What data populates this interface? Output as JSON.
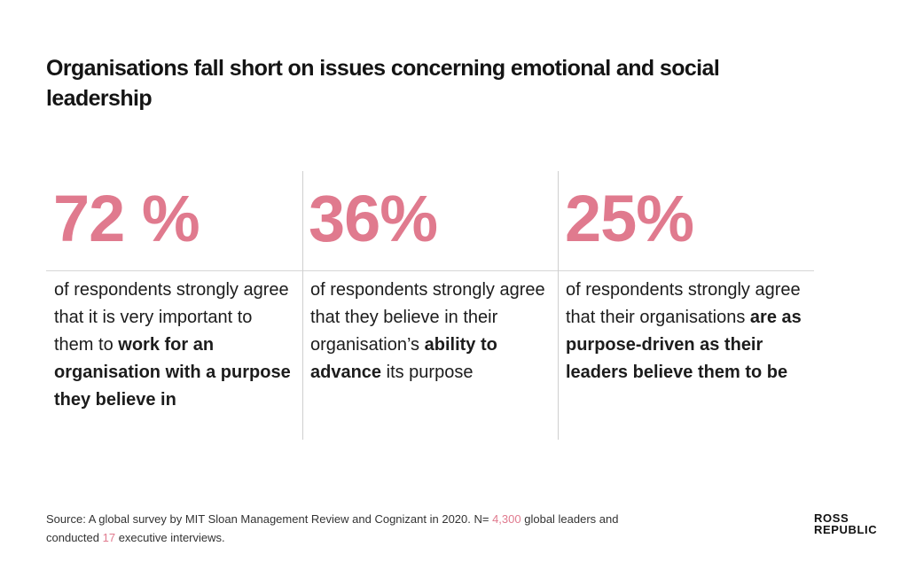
{
  "title": "Organisations fall short on issues concerning emotional and social leadership",
  "accent_color": "#e07a8e",
  "chart_data": {
    "type": "stat-cards",
    "title": "Organisations fall short on issues concerning emotional and social leadership",
    "unit": "%",
    "values": [
      72,
      36,
      25
    ],
    "cards": [
      {
        "value": 72,
        "value_label": "72 %",
        "desc_pre": "of respondents strongly agree that it is very important to them to ",
        "desc_bold": "work for an organisation with a purpose they believe in",
        "desc_post": ""
      },
      {
        "value": 36,
        "value_label": "36%",
        "desc_pre": "of respondents strongly agree that they believe in their organisation’s ",
        "desc_bold": "ability to advance",
        "desc_post": " its purpose"
      },
      {
        "value": 25,
        "value_label": "25%",
        "desc_pre": "of respondents strongly agree that their organisations ",
        "desc_bold": "are as purpose-driven as their leaders believe them to be",
        "desc_post": ""
      }
    ]
  },
  "source": {
    "pre": "Source: A global survey by MIT Sloan Management Review and Cognizant in 2020. N= ",
    "n_leaders": "4,300",
    "mid": " global leaders and conducted ",
    "n_interviews": "17",
    "post": " executive interviews."
  },
  "logo": {
    "line1": "ROSS",
    "line2": "REPUBLIC"
  }
}
